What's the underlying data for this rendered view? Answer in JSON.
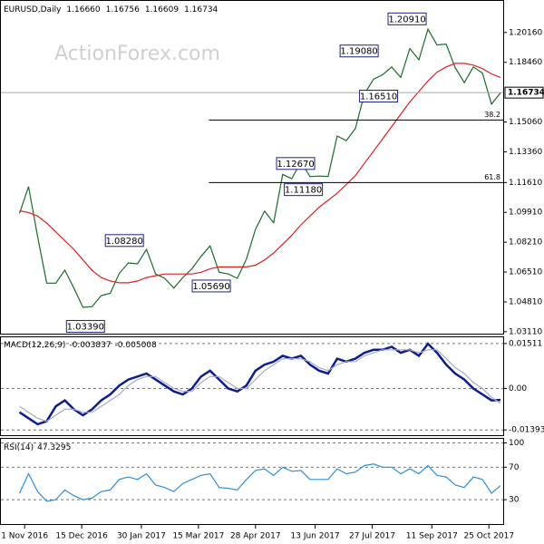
{
  "chart_data": [
    {
      "type": "line",
      "title": "EURUSD,Daily",
      "watermark": "ActionForex.com",
      "last_bar": [
        {
          "value": 1.1666,
          "label": "1.16660"
        },
        1.16756,
        1.16609
      ],
      "x": [
        "2016-10-28",
        "2016-11-04",
        "2016-11-11",
        "2016-11-18",
        "2016-11-25",
        "2016-12-02",
        "2016-12-09",
        "2016-12-16",
        "2016-12-23",
        "2016-12-30",
        "2017-01-06",
        "2017-01-13",
        "2017-01-20",
        "2017-01-27",
        "2017-02-03",
        "2017-02-10",
        "2017-02-17",
        "2017-02-24",
        "2017-03-03",
        "2017-03-10",
        "2017-03-17",
        "2017-03-24",
        "2017-03-31",
        "2017-04-07",
        "2017-04-14",
        "2017-04-21",
        "2017-04-28",
        "2017-05-05",
        "2017-05-12",
        "2017-05-19",
        "2017-05-26",
        "2017-06-02",
        "2017-06-09",
        "2017-06-16",
        "2017-06-23",
        "2017-06-30",
        "2017-07-07",
        "2017-07-14",
        "2017-07-21",
        "2017-07-28",
        "2017-08-04",
        "2017-08-11",
        "2017-08-18",
        "2017-08-25",
        "2017-09-01",
        "2017-09-08",
        "2017-09-15",
        "2017-09-22",
        "2017-09-29",
        "2017-10-06",
        "2017-10-13",
        "2017-10-20",
        "2017-10-27",
        "2017-11-03"
      ],
      "series": [
        {
          "color": "#1a6b2a",
          "values": [
            1.0985,
            1.1138,
            1.0853,
            1.0588,
            1.0588,
            1.0662,
            1.056,
            1.045,
            1.0454,
            1.0517,
            1.053,
            1.0644,
            1.0703,
            1.0698,
            1.078,
            1.064,
            1.0615,
            1.056,
            1.062,
            1.067,
            1.074,
            1.08,
            1.065,
            1.064,
            1.0615,
            1.0725,
            1.0895,
            1.0998,
            1.0932,
            1.1207,
            1.1183,
            1.128,
            1.1195,
            1.1198,
            1.1196,
            1.1426,
            1.14,
            1.1468,
            1.1665,
            1.175,
            1.1775,
            1.182,
            1.176,
            1.1925,
            1.186,
            1.2035,
            1.1945,
            1.195,
            1.1815,
            1.173,
            1.182,
            1.1785,
            1.1608,
            1.16734
          ]
        },
        {
          "color": "#e02020",
          "values": [
            1.1,
            1.099,
            1.097,
            1.093,
            1.088,
            1.083,
            1.078,
            1.072,
            1.066,
            1.062,
            1.06,
            1.059,
            1.059,
            1.06,
            1.062,
            1.063,
            1.064,
            1.064,
            1.064,
            1.064,
            1.065,
            1.067,
            1.068,
            1.068,
            1.068,
            1.068,
            1.069,
            1.072,
            1.076,
            1.081,
            1.086,
            1.092,
            1.097,
            1.102,
            1.106,
            1.11,
            1.115,
            1.12,
            1.127,
            1.134,
            1.141,
            1.148,
            1.155,
            1.162,
            1.168,
            1.174,
            1.179,
            1.182,
            1.184,
            1.184,
            1.183,
            1.181,
            1.178,
            1.176
          ]
        }
      ],
      "annotations": [
        {
          "value": 1.2091,
          "label": "1.20910",
          "x": "2017-09-08"
        },
        {
          "value": 1.1908,
          "label": "1.19080",
          "x": "2017-08-02"
        },
        {
          "value": 1.1651,
          "label": "1.16510",
          "x": "2017-08-17"
        },
        {
          "value": 1.1267,
          "label": "1.12670",
          "x": "2017-06-14"
        },
        {
          "value": 1.1118,
          "label": "1.11180",
          "x": "2017-06-20"
        },
        {
          "value": 1.0828,
          "label": "1.08280",
          "x": "2017-02-02"
        },
        {
          "value": 1.0569,
          "label": "1.05690",
          "x": "2017-04-10"
        },
        {
          "value": 1.0339,
          "label": "1.03390",
          "x": "2017-01-03"
        }
      ],
      "fib": [
        {
          "ratio": 38.2,
          "price": 1.1517,
          "from": "2017-03-23"
        },
        {
          "ratio": 61.8,
          "price": 1.1161,
          "from": "2017-03-23"
        }
      ],
      "ylim": [
        1.03,
        1.2196
      ],
      "yticks": [
        {
          "value": 1.2016,
          "label": "1.20160"
        },
        {
          "value": 1.1846,
          "label": "1.18460"
        },
        {
          "value": 1.1506,
          "label": "1.15060"
        },
        {
          "value": 1.1336,
          "label": "1.13360"
        },
        {
          "value": 1.1161,
          "label": "1.11610"
        },
        {
          "value": 1.0991,
          "label": "1.09910"
        },
        {
          "value": 1.0821,
          "label": "1.08210"
        },
        {
          "value": 1.0651,
          "label": "1.06510"
        },
        {
          "value": 1.0481,
          "label": "1.04810"
        },
        {
          "value": 1.0311,
          "label": "1.03110"
        }
      ]
    },
    {
      "type": "line",
      "title": "MACD(12,26,9)",
      "series": [
        {
          "color": "#0b1e8c",
          "values": [
            -0.008,
            -0.01,
            -0.012,
            -0.011,
            -0.006,
            -0.004,
            -0.007,
            -0.009,
            -0.007,
            -0.004,
            -0.002,
            0.001,
            0.003,
            0.004,
            0.005,
            0.003,
            0.001,
            -0.001,
            -0.002,
            0,
            0.004,
            0.006,
            0.003,
            0,
            -0.001,
            0.001,
            0.006,
            0.008,
            0.009,
            0.011,
            0.01,
            0.011,
            0.008,
            0.006,
            0.005,
            0.01,
            0.009,
            0.01,
            0.012,
            0.013,
            0.013,
            0.014,
            0.012,
            0.013,
            0.011,
            0.015,
            0.012,
            0.008,
            0.005,
            0.003,
            0,
            -0.002,
            -0.004,
            -0.003837
          ]
        },
        {
          "color": "#a8a8c8",
          "values": [
            -0.006,
            -0.008,
            -0.01,
            -0.011,
            -0.009,
            -0.007,
            -0.007,
            -0.008,
            -0.008,
            -0.006,
            -0.004,
            -0.002,
            0.001,
            0.003,
            0.004,
            0.004,
            0.002,
            0,
            -0.001,
            -0.001,
            0.002,
            0.004,
            0.004,
            0.002,
            0,
            0,
            0.003,
            0.006,
            0.008,
            0.01,
            0.01,
            0.01,
            0.009,
            0.007,
            0.006,
            0.008,
            0.009,
            0.009,
            0.011,
            0.012,
            0.013,
            0.013,
            0.013,
            0.013,
            0.012,
            0.013,
            0.013,
            0.01,
            0.007,
            0.005,
            0.002,
            0,
            -0.003,
            -0.005008
          ]
        }
      ],
      "ylim": [
        -0.0157,
        0.0172
      ],
      "yticks": [
        0.01511,
        {
          "value": 0,
          "label": "0.00"
        },
        -0.01393
      ]
    },
    {
      "type": "line",
      "title": "RSI(14)",
      "series": [
        {
          "color": "#2f8fd8",
          "values": [
            38,
            62,
            40,
            28,
            30,
            42,
            35,
            30,
            32,
            40,
            42,
            55,
            58,
            55,
            62,
            48,
            45,
            40,
            50,
            55,
            60,
            62,
            45,
            44,
            42,
            55,
            66,
            68,
            60,
            70,
            65,
            66,
            55,
            55,
            55,
            68,
            62,
            64,
            72,
            74,
            70,
            70,
            62,
            68,
            62,
            72,
            60,
            58,
            48,
            45,
            58,
            55,
            38,
            47.3295
          ]
        }
      ],
      "ylim": [
        0,
        105
      ],
      "yticks": [
        100,
        70,
        30
      ],
      "xlim": [
        "2016-10-13",
        "2017-11-05"
      ],
      "xticks": [
        {
          "value": "2016-11-01",
          "label": "1 Nov 2016"
        },
        {
          "value": "2016-12-15",
          "label": "15 Dec 2016"
        },
        {
          "value": "2017-01-30",
          "label": "30 Jan 2017"
        },
        {
          "value": "2017-03-15",
          "label": "15 Mar 2017"
        },
        {
          "value": "2017-04-28",
          "label": "28 Apr 2017"
        },
        {
          "value": "2017-06-13",
          "label": "13 Jun 2017"
        },
        {
          "value": "2017-07-27",
          "label": "27 Jul 2017"
        },
        {
          "value": "2017-09-11",
          "label": "11 Sep 2017"
        },
        {
          "value": "2017-10-25",
          "label": "25 Oct 2017"
        }
      ]
    }
  ]
}
